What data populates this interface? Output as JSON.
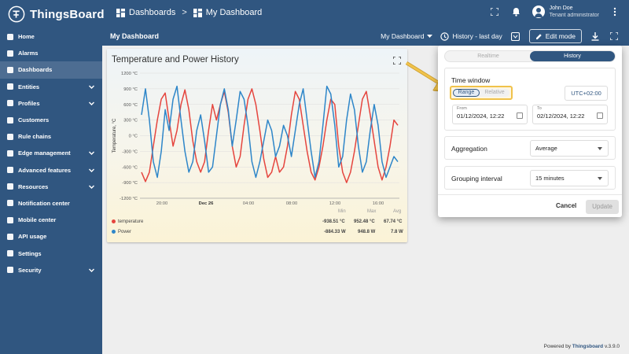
{
  "app": {
    "name": "ThingsBoard"
  },
  "breadcrumb": {
    "first": "Dashboards",
    "separator": ">",
    "current": "My Dashboard"
  },
  "user": {
    "name": "John Doe",
    "role": "Tenant administrator"
  },
  "sidebar": {
    "items": [
      {
        "label": "Home",
        "icon": "home-icon",
        "expandable": false,
        "active": false
      },
      {
        "label": "Alarms",
        "icon": "bell-icon",
        "expandable": false,
        "active": false
      },
      {
        "label": "Dashboards",
        "icon": "dashboard-icon",
        "expandable": false,
        "active": true
      },
      {
        "label": "Entities",
        "icon": "entities-icon",
        "expandable": true,
        "active": false
      },
      {
        "label": "Profiles",
        "icon": "profiles-icon",
        "expandable": true,
        "active": false
      },
      {
        "label": "Customers",
        "icon": "customers-icon",
        "expandable": false,
        "active": false
      },
      {
        "label": "Rule chains",
        "icon": "rule-chains-icon",
        "expandable": false,
        "active": false
      },
      {
        "label": "Edge management",
        "icon": "edge-icon",
        "expandable": true,
        "active": false
      },
      {
        "label": "Advanced features",
        "icon": "tools-icon",
        "expandable": true,
        "active": false
      },
      {
        "label": "Resources",
        "icon": "folder-icon",
        "expandable": true,
        "active": false
      },
      {
        "label": "Notification center",
        "icon": "notification-icon",
        "expandable": false,
        "active": false
      },
      {
        "label": "Mobile center",
        "icon": "mobile-icon",
        "expandable": false,
        "active": false
      },
      {
        "label": "API usage",
        "icon": "api-icon",
        "expandable": false,
        "active": false
      },
      {
        "label": "Settings",
        "icon": "gear-icon",
        "expandable": false,
        "active": false
      },
      {
        "label": "Security",
        "icon": "shield-icon",
        "expandable": true,
        "active": false
      }
    ]
  },
  "toolbar": {
    "title": "My Dashboard",
    "dashboard_select": "My Dashboard",
    "timewindow_label": "History - last day",
    "edit_mode_label": "Edit mode"
  },
  "widget": {
    "title": "Temperature and Power History",
    "legend_headers": {
      "min": "Min",
      "max": "Max",
      "avg": "Avg"
    },
    "legend": [
      {
        "name": "temperature",
        "color": "#e5453e",
        "min": "-938.51 °C",
        "max": "952.48 °C",
        "avg": "67.74 °C"
      },
      {
        "name": "Power",
        "color": "#2e86c9",
        "min": "-884.33 W",
        "max": "948.8 W",
        "avg": "7.8 W"
      }
    ]
  },
  "chart_data": {
    "type": "line",
    "title": "Temperature and Power History",
    "ylabel": "Temperature, °C",
    "ylim": [
      -1200,
      1200
    ],
    "y_ticks": [
      "1200 °C",
      "900 °C",
      "600 °C",
      "300 °C",
      "0 °C",
      "-300 °C",
      "-600 °C",
      "-900 °C",
      "-1200 °C"
    ],
    "x_ticks": [
      "20:00",
      "Dec 26",
      "04:00",
      "08:00",
      "12:00",
      "16:00"
    ],
    "series": [
      {
        "name": "temperature",
        "color": "#e5453e",
        "values": [
          -700,
          -880,
          -700,
          -200,
          300,
          700,
          820,
          300,
          -200,
          100,
          600,
          880,
          500,
          -100,
          -500,
          -700,
          -500,
          100,
          600,
          300,
          600,
          850,
          450,
          -200,
          -600,
          -400,
          200,
          700,
          900,
          600,
          100,
          -450,
          -800,
          -700,
          -400,
          -700,
          -600,
          -200,
          400,
          850,
          700,
          200,
          -300,
          -700,
          -850,
          -600,
          -200,
          300,
          700,
          600,
          -200,
          -700,
          -900,
          -700,
          -300,
          200,
          700,
          850,
          400,
          -100,
          -600,
          -850,
          -600,
          -200,
          300,
          200
        ]
      },
      {
        "name": "Power",
        "color": "#2e86c9",
        "values": [
          400,
          900,
          300,
          -500,
          -800,
          -300,
          500,
          100,
          700,
          950,
          300,
          -300,
          -700,
          -500,
          100,
          400,
          -100,
          -700,
          -600,
          0,
          600,
          900,
          500,
          -200,
          300,
          850,
          700,
          200,
          -500,
          -800,
          -500,
          -100,
          300,
          100,
          -400,
          -200,
          200,
          0,
          -400,
          100,
          600,
          900,
          300,
          -300,
          -800,
          -500,
          200,
          950,
          800,
          200,
          -600,
          -400,
          300,
          800,
          500,
          -200,
          -700,
          -500,
          100,
          600,
          200,
          -500,
          -800,
          -600,
          -400,
          -500
        ]
      }
    ]
  },
  "popover": {
    "tabs": {
      "realtime": "Realtime",
      "history": "History"
    },
    "time_window_title": "Time window",
    "range_label": "Range",
    "relative_label": "Relative",
    "timezone": "UTC+02:00",
    "from_label": "From",
    "from_value": "01/12/2024, 12:22",
    "to_label": "To",
    "to_value": "02/12/2024, 12:22",
    "aggregation_label": "Aggregation",
    "aggregation_value": "Average",
    "grouping_label": "Grouping interval",
    "grouping_value": "15 minutes",
    "cancel_label": "Cancel",
    "update_label": "Update"
  },
  "footer": {
    "prefix": "Powered by",
    "brand": "Thingsboard",
    "version": "v.3.9.0"
  },
  "colors": {
    "primary": "#305680",
    "temperature": "#e5453e",
    "power": "#2e86c9",
    "highlight": "#f0c24b"
  }
}
